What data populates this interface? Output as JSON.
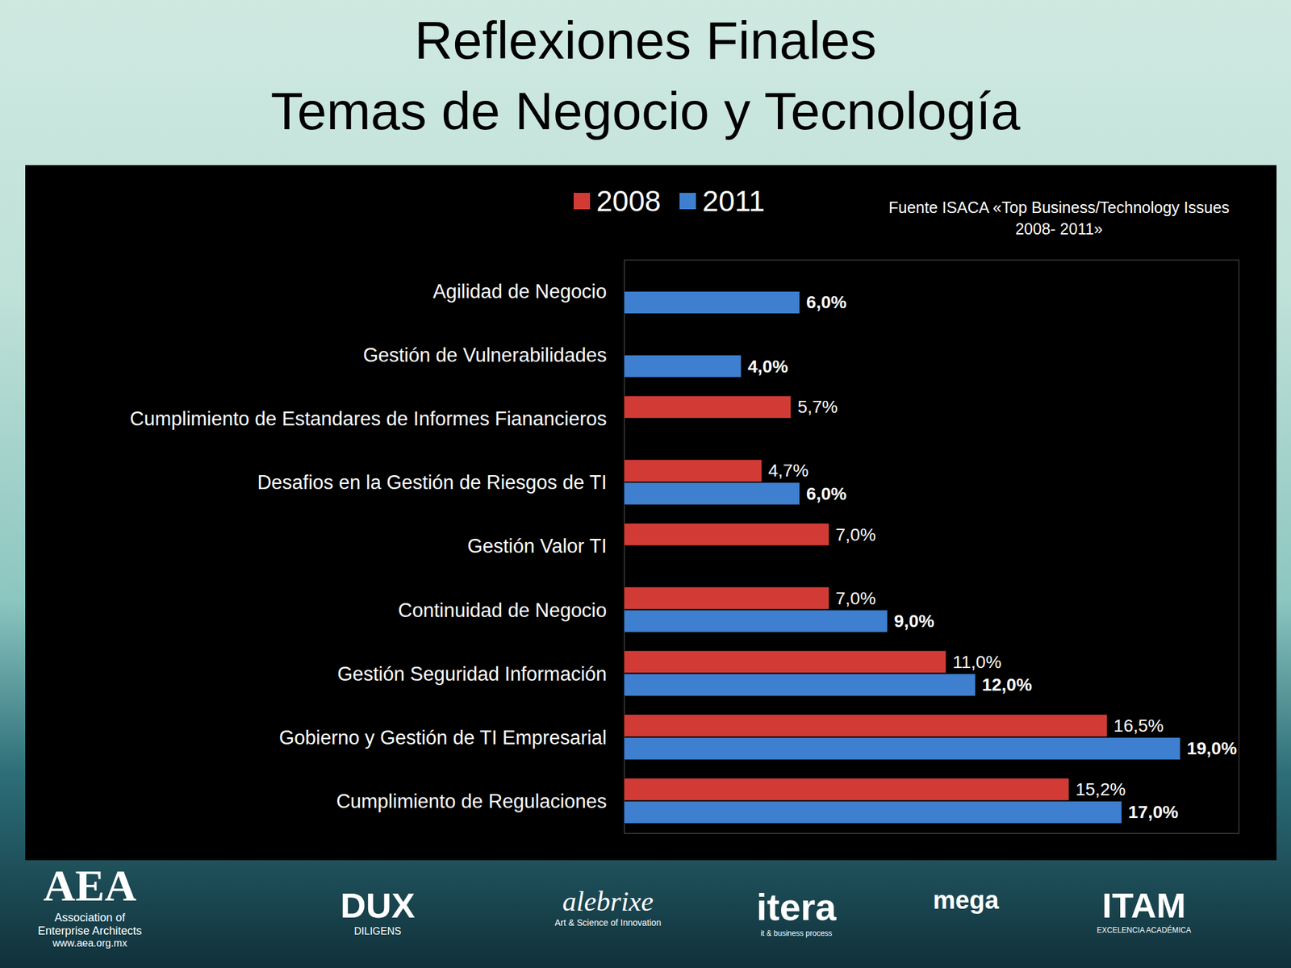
{
  "chart_data": {
    "type": "bar",
    "orientation": "horizontal",
    "title": "Reflexiones Finales",
    "subtitle": "Temas de Negocio y Tecnología",
    "annotations": [
      "Fuente ISACA «Top Business/Technology Issues 2008- 2011»"
    ],
    "categories": [
      "Agilidad de Negocio",
      "Gestión de Vulnerabilidades",
      "Cumplimiento de Estandares de Informes Fianancieros",
      "Desafios en la Gestión de Riesgos de TI",
      "Gestión Valor TI",
      "Continuidad de Negocio",
      "Gestión Seguridad Información",
      "Gobierno y Gestión de TI Empresarial",
      "Cumplimiento de Regulaciones"
    ],
    "series": [
      {
        "name": "2008",
        "color": "#d23b35",
        "values": [
          null,
          null,
          5.7,
          4.7,
          7.0,
          7.0,
          11.0,
          16.5,
          15.2
        ],
        "value_labels": [
          null,
          null,
          "5,7%",
          "4,7%",
          "7,0%",
          "7,0%",
          "11,0%",
          "16,5%",
          "15,2%"
        ]
      },
      {
        "name": "2011",
        "color": "#3f7fd0",
        "values": [
          6.0,
          4.0,
          null,
          6.0,
          null,
          9.0,
          12.0,
          19.0,
          17.0
        ],
        "value_labels": [
          "6,0%",
          "4,0%",
          null,
          "6,0%",
          null,
          "9,0%",
          "12,0%",
          "19,0%",
          "17,0%"
        ]
      }
    ],
    "xlim": [
      0,
      21
    ],
    "xticks": [],
    "tick_labels": "y",
    "data_labels": true,
    "legend": "top",
    "grid": false
  },
  "footer_logos": [
    {
      "lines": [
        "AEA",
        "Association of",
        "Enterprise Architects",
        "www.aea.org.mx"
      ]
    },
    {
      "lines": [
        "DUX",
        "DILIGENS"
      ]
    },
    {
      "lines": [
        "alebrixe",
        "Art & Science of Innovation"
      ]
    },
    {
      "lines": [
        "itera",
        "it & business process"
      ]
    },
    {
      "lines": [
        "mega"
      ]
    },
    {
      "lines": [
        "ITAM",
        "EXCELENCIA ACADÉMICA"
      ]
    }
  ]
}
